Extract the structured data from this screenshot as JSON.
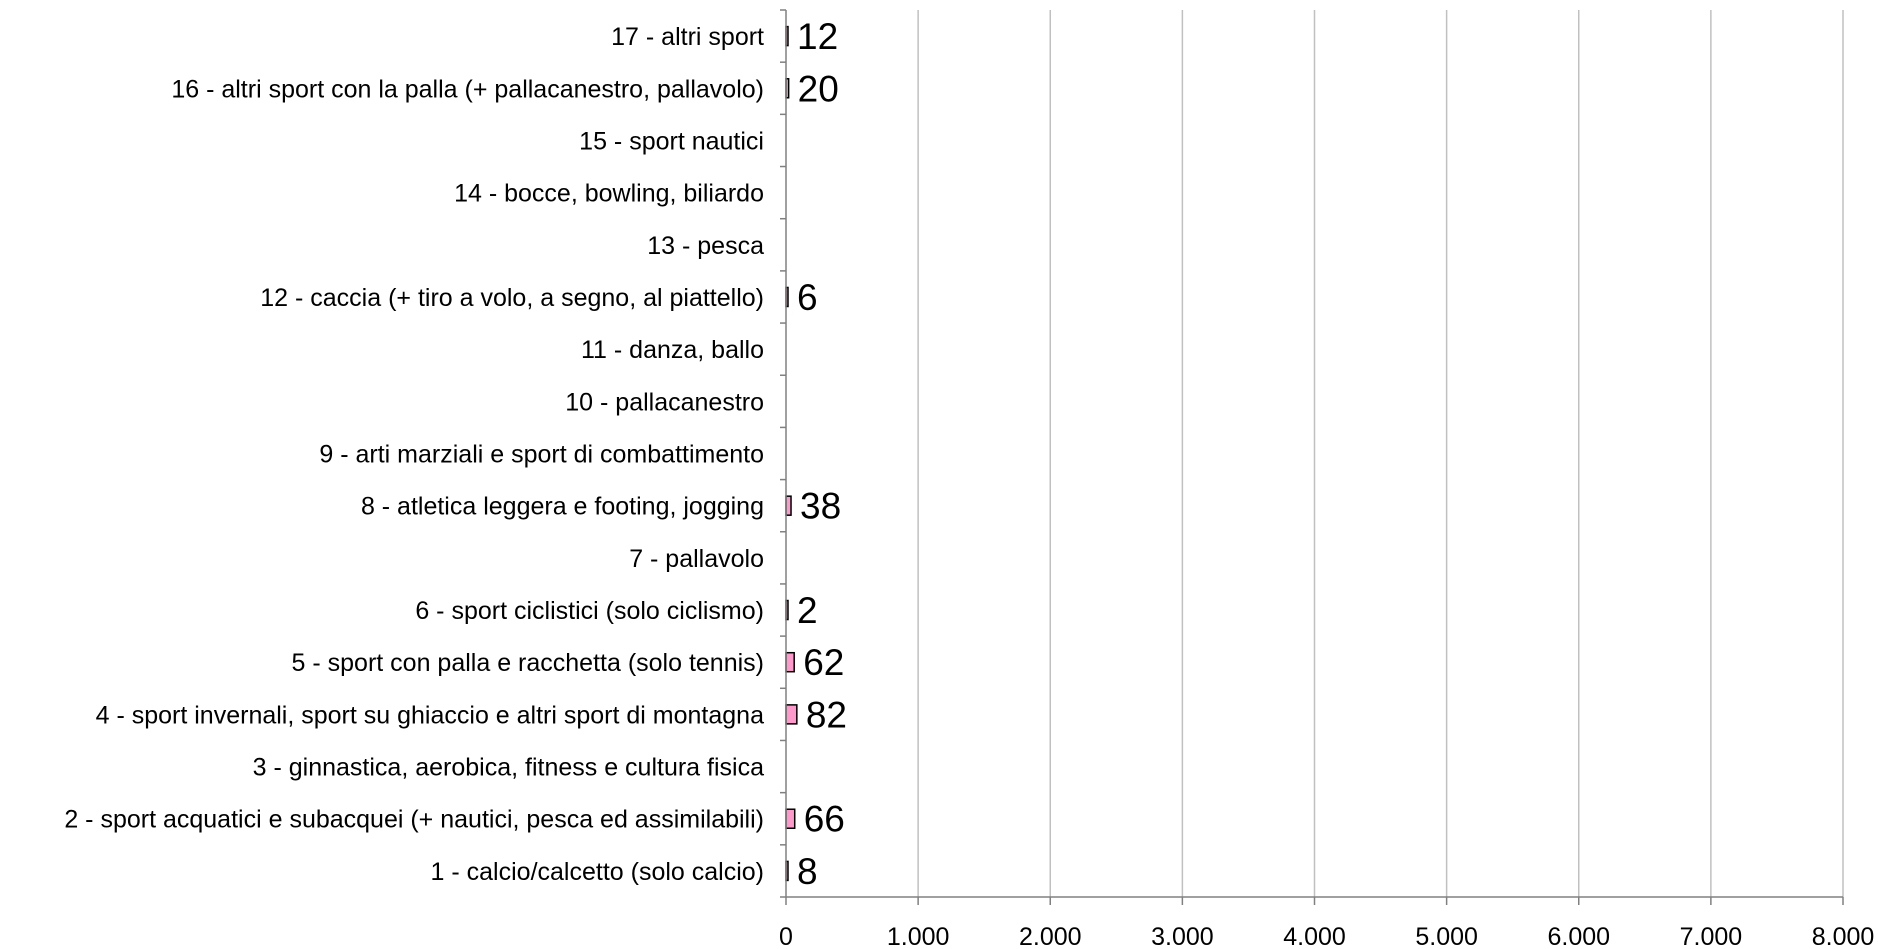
{
  "chart_data": {
    "type": "bar",
    "orientation": "horizontal",
    "title": "",
    "xlabel": "",
    "ylabel": "",
    "xlim": [
      0,
      8000
    ],
    "grid": true,
    "legend": "none",
    "bar_color": "#ff99cc",
    "categories": [
      "17 - altri sport",
      "16 - altri sport con la palla (+ pallacanestro, pallavolo)",
      "15 - sport nautici",
      "14 - bocce, bowling, biliardo",
      "13 - pesca",
      "12 - caccia (+ tiro a volo, a segno, al piattello)",
      "11 - danza, ballo",
      "10 - pallacanestro",
      "9 - arti marziali e sport di combattimento",
      "8 - atletica leggera e footing, jogging",
      "7 - pallavolo",
      "6 - sport ciclistici (solo ciclismo)",
      "5 - sport con palla e racchetta (solo tennis)",
      "4 - sport invernali, sport su ghiaccio e altri sport di montagna",
      "3 - ginnastica, aerobica, fitness e cultura fisica",
      "2 - sport acquatici e subacquei (+ nautici, pesca ed assimilabili)",
      "1 - calcio/calcetto (solo calcio)"
    ],
    "values": [
      12,
      20,
      null,
      null,
      null,
      6,
      null,
      null,
      null,
      38,
      null,
      2,
      62,
      82,
      null,
      66,
      8
    ],
    "data_labels": [
      "12",
      "20",
      "",
      "",
      "",
      "6",
      "",
      "",
      "",
      "38",
      "",
      "2",
      "62",
      "82",
      "",
      "66",
      "8"
    ],
    "x_ticks": [
      0,
      1000,
      2000,
      3000,
      4000,
      5000,
      6000,
      7000,
      8000
    ],
    "x_tick_labels": [
      "0",
      "1.000",
      "2.000",
      "3.000",
      "4.000",
      "5.000",
      "6.000",
      "7.000",
      "8.000"
    ]
  }
}
